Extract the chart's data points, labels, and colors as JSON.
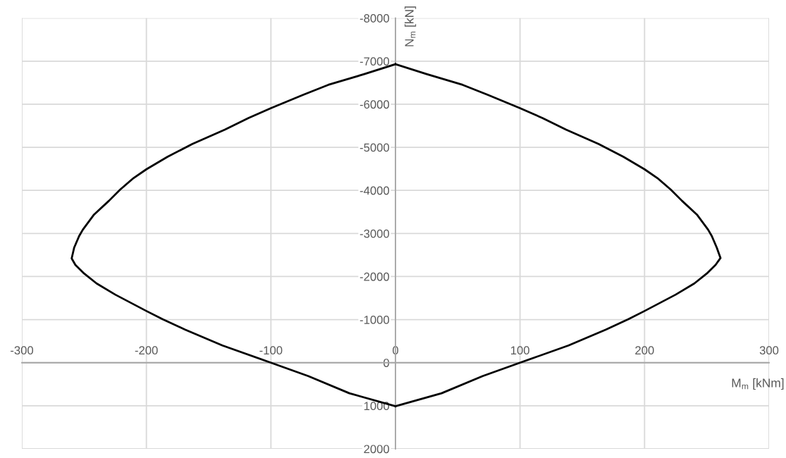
{
  "chart_data": {
    "type": "line",
    "xlabel": "M$_{m}$ [kNm]",
    "ylabel": "N$_{m}$ [kN]",
    "series": [
      {
        "color": "#000000",
        "line_style": "solid",
        "marker": "none",
        "x": [
          0,
          25,
          54,
          74,
          100,
          118,
          137,
          163,
          183,
          200,
          211,
          221,
          230,
          242,
          251,
          254,
          258,
          261,
          257,
          250,
          240,
          225,
          200,
          187,
          169,
          139,
          100,
          70,
          37,
          0
        ],
        "values": [
          -6930,
          -6700,
          -6450,
          -6220,
          -5910,
          -5680,
          -5410,
          -5080,
          -4780,
          -4490,
          -4270,
          -4020,
          -3760,
          -3440,
          -3090,
          -2940,
          -2670,
          -2430,
          -2270,
          -2070,
          -1840,
          -1580,
          -1200,
          -1010,
          -770,
          -400,
          0,
          310,
          710,
          1010
        ]
      },
      {
        "color": "#000000",
        "line_style": "solid",
        "marker": "none",
        "x": [
          0,
          -25,
          -54,
          -74,
          -100,
          -118,
          -137,
          -163,
          -183,
          -200,
          -211,
          -221,
          -230,
          -242,
          -251,
          -254,
          -258,
          -260,
          -257,
          -250,
          -240,
          -225,
          -200,
          -187,
          -169,
          -139,
          -100,
          -70,
          -37,
          0
        ],
        "values": [
          -6930,
          -6700,
          -6450,
          -6220,
          -5910,
          -5680,
          -5410,
          -5080,
          -4780,
          -4490,
          -4270,
          -4020,
          -3760,
          -3440,
          -3090,
          -2940,
          -2670,
          -2420,
          -2270,
          -2070,
          -1840,
          -1580,
          -1200,
          -1010,
          -770,
          -400,
          0,
          310,
          710,
          1010
        ]
      }
    ],
    "xlim": [
      -300,
      300
    ],
    "xticks": [
      -300,
      -200,
      -100,
      0,
      100,
      200,
      300
    ],
    "ylim": [
      2000,
      -8000
    ],
    "yticks": [
      -8000,
      -7000,
      -6000,
      -5000,
      -4000,
      -3000,
      -2000,
      -1000,
      0,
      1000,
      2000
    ],
    "grid": true
  }
}
